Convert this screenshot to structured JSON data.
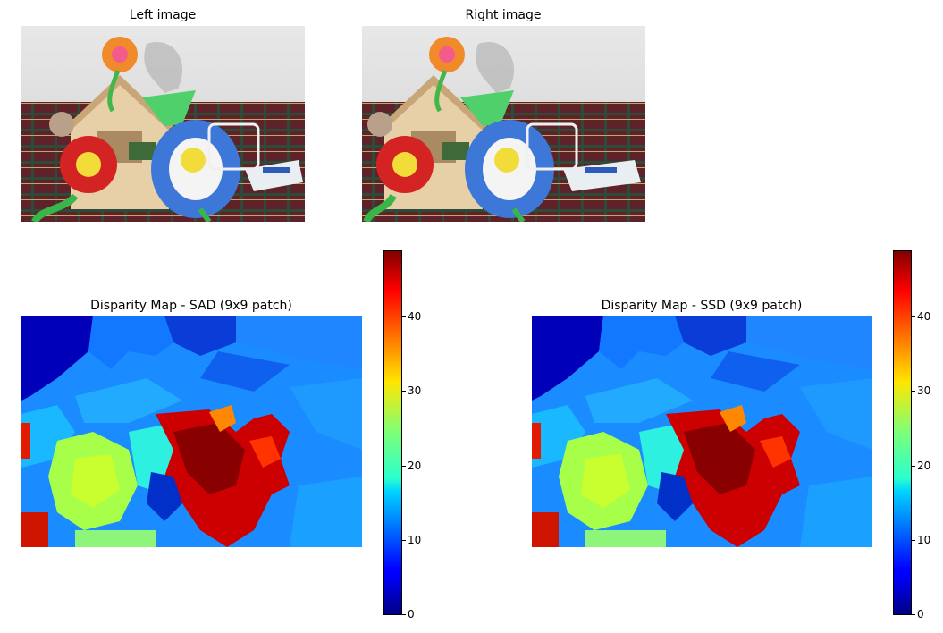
{
  "figure": {
    "top_left_title": "Left image",
    "top_right_title": "Right image",
    "bottom_left_title": "Disparity Map - SAD (9x9 patch)",
    "bottom_right_title": "Disparity Map - SSD (9x9 patch)"
  },
  "colorbar": {
    "colormap": "jet",
    "range": [
      0,
      49
    ],
    "ticks": [
      "0",
      "10",
      "20",
      "30",
      "40"
    ]
  },
  "colors": {
    "background": "#ffffff",
    "wall": "#d9d9d9",
    "sofa": "#6b2a2e",
    "flower_red": "#d81f1f",
    "flower_blue": "#3b6fd6",
    "flower_yellow": "#f1e04a",
    "stem_green": "#39b54a"
  }
}
